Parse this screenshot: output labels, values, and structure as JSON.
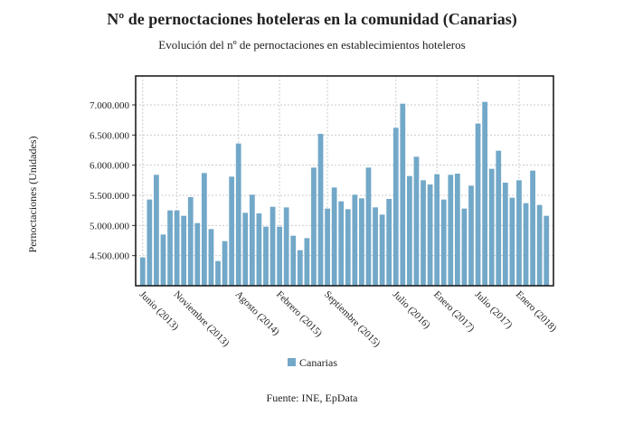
{
  "chart_data": {
    "type": "bar",
    "title": "Nº de pernoctaciones hoteleras en la comunidad (Canarias)",
    "subtitle": "Evolución del nº de pernoctaciones en establecimientos hoteleros",
    "y_label": "Pernoctaciones (Unidades)",
    "source": "Fuente: INE, EpData",
    "categories": [
      "Junio (2013)",
      null,
      null,
      null,
      null,
      "Noviembre (2013)",
      null,
      null,
      null,
      null,
      null,
      null,
      null,
      null,
      "Agosto (2014)",
      null,
      null,
      null,
      null,
      null,
      "Febrero (2015)",
      null,
      null,
      null,
      null,
      null,
      null,
      "Septiembre (2015)",
      null,
      null,
      null,
      null,
      null,
      null,
      null,
      null,
      null,
      "Julio (2016)",
      null,
      null,
      null,
      null,
      null,
      "Enero (2017)",
      null,
      null,
      null,
      null,
      null,
      "Julio (2017)",
      null,
      null,
      null,
      null,
      null,
      "Enero (2018)",
      null,
      null,
      null,
      null
    ],
    "series": [
      {
        "name": "Canarias",
        "color": "#72a8c8",
        "values": [
          4470000,
          5430000,
          5840000,
          4850000,
          5250000,
          5250000,
          5160000,
          5470000,
          5040000,
          5870000,
          4940000,
          4410000,
          4740000,
          5810000,
          6360000,
          5210000,
          5510000,
          5200000,
          4980000,
          5310000,
          4980000,
          5300000,
          4830000,
          4590000,
          4790000,
          5960000,
          6520000,
          5280000,
          5630000,
          5400000,
          5270000,
          5510000,
          5450000,
          5960000,
          5300000,
          5180000,
          5440000,
          6620000,
          7020000,
          5820000,
          6140000,
          5750000,
          5680000,
          5850000,
          5430000,
          5840000,
          5860000,
          5280000,
          5660000,
          6690000,
          7050000,
          5940000,
          6240000,
          5710000,
          5460000,
          5750000,
          5370000,
          5910000,
          5340000,
          5160000
        ]
      }
    ],
    "ylim": [
      4000000,
      7480000
    ],
    "yticks": [
      {
        "value": 4500000,
        "label": "4.500.000"
      },
      {
        "value": 5000000,
        "label": "5.000.000"
      },
      {
        "value": 5500000,
        "label": "5.500.000"
      },
      {
        "value": 6000000,
        "label": "6.000.000"
      },
      {
        "value": 6500000,
        "label": "6.500.000"
      },
      {
        "value": 7000000,
        "label": "7.000.000"
      }
    ],
    "grid": true
  }
}
